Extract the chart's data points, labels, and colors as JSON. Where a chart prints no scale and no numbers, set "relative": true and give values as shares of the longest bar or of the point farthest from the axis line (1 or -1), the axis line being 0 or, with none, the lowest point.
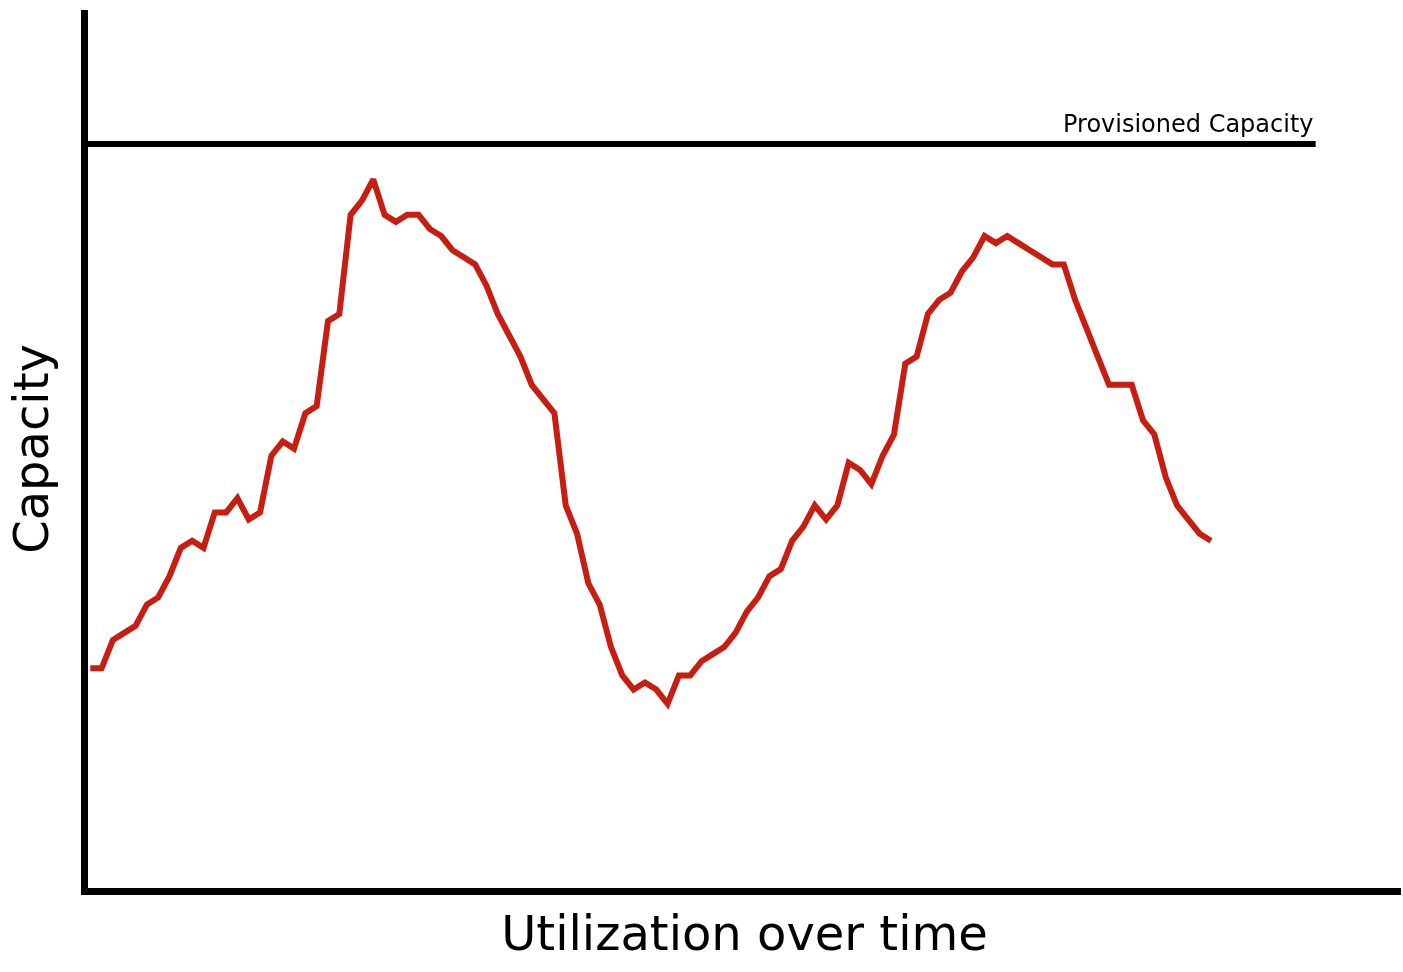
{
  "chart_data": {
    "type": "line",
    "relative": true,
    "xlabel": "Utilization over time",
    "ylabel": "Capacity",
    "line_style": "solid",
    "categories": [
      null,
      null,
      null,
      null,
      null,
      null,
      null,
      null,
      null,
      null,
      null,
      null,
      null,
      null,
      null,
      null,
      null,
      null,
      null,
      null,
      null,
      null,
      null,
      null,
      null,
      null,
      null,
      null,
      null,
      null,
      null,
      null,
      null,
      null,
      null,
      null,
      null,
      null,
      null,
      null,
      null,
      null,
      null,
      null,
      null,
      null,
      null,
      null,
      null,
      null,
      null,
      null,
      null,
      null,
      null,
      null,
      null,
      null,
      null,
      null,
      null,
      null,
      null,
      null,
      null,
      null,
      null,
      null,
      null,
      null,
      null,
      null,
      null,
      null,
      null,
      null,
      null,
      null,
      null,
      null,
      null,
      null,
      null,
      null,
      null,
      null,
      null,
      null,
      null,
      null,
      null,
      null,
      null,
      null,
      null,
      null,
      null,
      null,
      null,
      null
    ],
    "ref_lines": [
      {
        "axis": "y",
        "value": 1.05,
        "label": "Provisioned Capacity",
        "color": "#000000"
      }
    ],
    "series": [
      {
        "color": "#c81e12",
        "values": [
          0.31,
          0.31,
          0.35,
          0.36,
          0.37,
          0.4,
          0.41,
          0.44,
          0.48,
          0.49,
          0.48,
          0.53,
          0.53,
          0.55,
          0.52,
          0.53,
          0.61,
          0.63,
          0.62,
          0.67,
          0.68,
          0.8,
          0.81,
          0.95,
          0.97,
          1,
          0.95,
          0.94,
          0.95,
          0.95,
          0.93,
          0.92,
          0.9,
          0.89,
          0.88,
          0.85,
          0.81,
          0.78,
          0.75,
          0.71,
          0.69,
          0.67,
          0.54,
          0.5,
          0.43,
          0.4,
          0.34,
          0.3,
          0.28,
          0.29,
          0.28,
          0.26,
          0.3,
          0.3,
          0.32,
          0.33,
          0.34,
          0.36,
          0.39,
          0.41,
          0.44,
          0.45,
          0.49,
          0.51,
          0.54,
          0.52,
          0.54,
          0.6,
          0.59,
          0.57,
          0.61,
          0.64,
          0.74,
          0.75,
          0.81,
          0.83,
          0.84,
          0.87,
          0.89,
          0.92,
          0.91,
          0.92,
          0.91,
          0.9,
          0.89,
          0.88,
          0.88,
          0.83,
          0.79,
          0.75,
          0.71,
          0.71,
          0.71,
          0.66,
          0.64,
          0.58,
          0.54,
          0.52,
          0.5,
          0.49
        ]
      }
    ]
  }
}
